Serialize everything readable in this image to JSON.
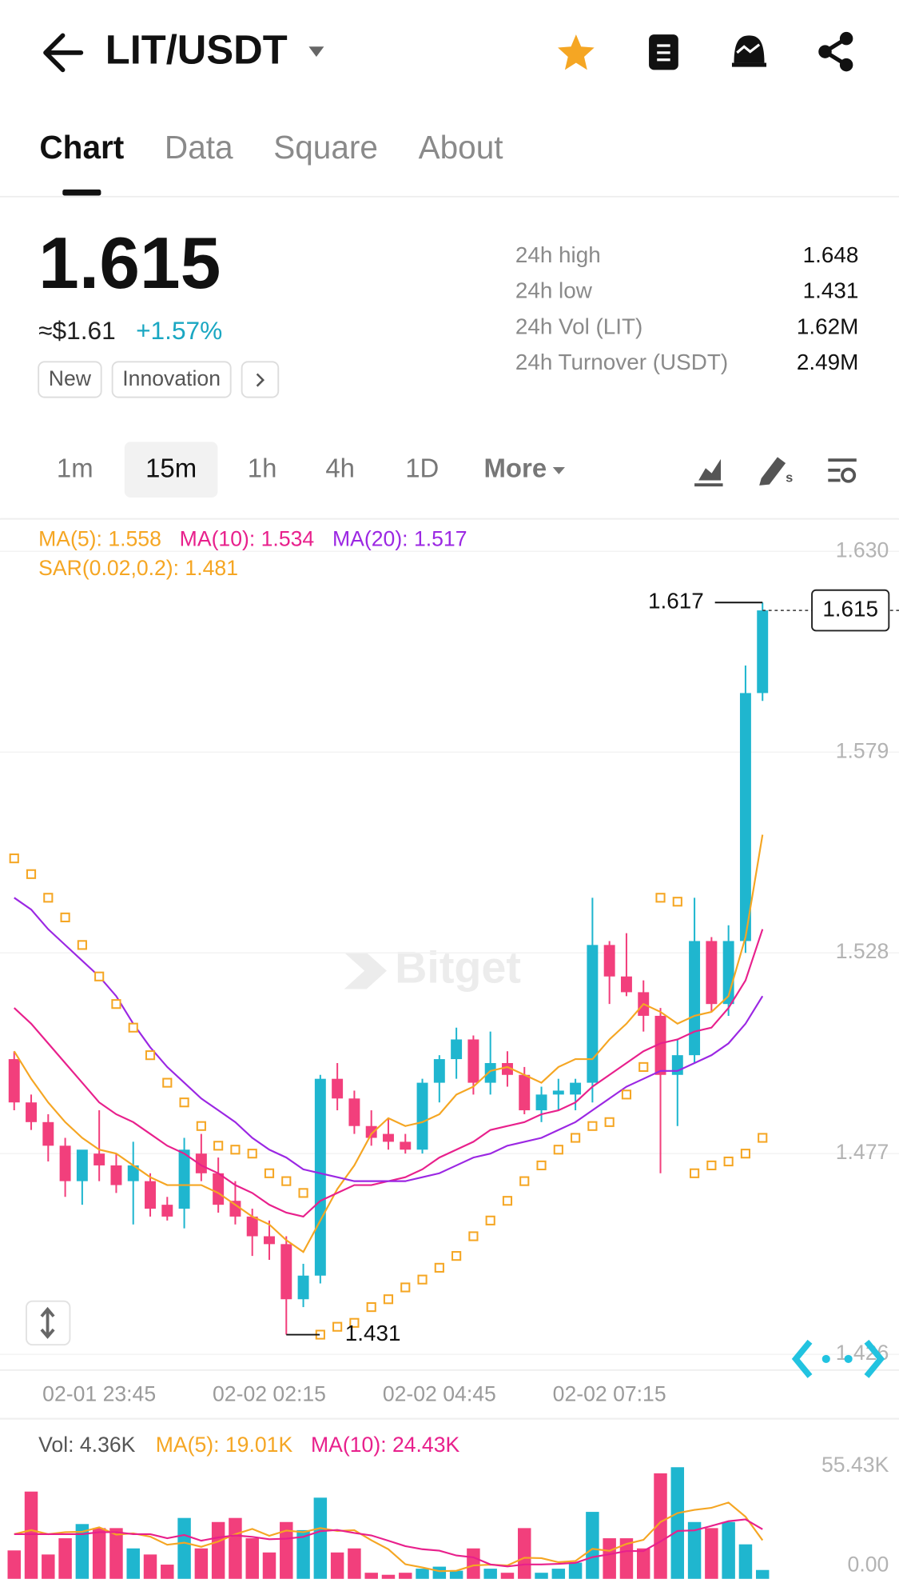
{
  "header": {
    "title": "LIT/USDT"
  },
  "tabs": {
    "items": [
      "Chart",
      "Data",
      "Square",
      "About"
    ],
    "selected": 0
  },
  "ticker": {
    "price": "1.615",
    "usd": "≈$1.61",
    "change": "+1.57%",
    "tags": [
      "New",
      "Innovation"
    ]
  },
  "stats": [
    {
      "label": "24h high",
      "value": "1.648"
    },
    {
      "label": "24h low",
      "value": "1.431"
    },
    {
      "label": "24h Vol (LIT)",
      "value": "1.62M"
    },
    {
      "label": "24h Turnover (USDT)",
      "value": "2.49M"
    }
  ],
  "intervals": {
    "items": [
      "1m",
      "15m",
      "1h",
      "4h",
      "1D",
      "More"
    ],
    "selected": 1
  },
  "watermark": "Bitget",
  "chart_data": [
    {
      "type": "candlestick",
      "categories": [
        null,
        null,
        null,
        null,
        null,
        "02-01 23:45",
        null,
        null,
        null,
        null,
        null,
        null,
        null,
        null,
        null,
        "02-02 02:15",
        null,
        null,
        null,
        null,
        null,
        null,
        null,
        null,
        null,
        "02-02 04:45",
        null,
        null,
        null,
        null,
        null,
        null,
        null,
        null,
        null,
        "02-02 07:15",
        null,
        null,
        null,
        null,
        null,
        null,
        null,
        null,
        null
      ],
      "ohlc": [
        [
          1.501,
          1.503,
          1.488,
          1.49
        ],
        [
          1.49,
          1.492,
          1.483,
          1.485
        ],
        [
          1.485,
          1.487,
          1.475,
          1.479
        ],
        [
          1.479,
          1.481,
          1.466,
          1.47
        ],
        [
          1.47,
          1.476,
          1.464,
          1.478
        ],
        [
          1.477,
          1.488,
          1.47,
          1.474
        ],
        [
          1.474,
          1.477,
          1.467,
          1.469
        ],
        [
          1.47,
          1.48,
          1.459,
          1.474
        ],
        [
          1.47,
          1.472,
          1.461,
          1.463
        ],
        [
          1.464,
          1.466,
          1.46,
          1.461
        ],
        [
          1.463,
          1.481,
          1.458,
          1.478
        ],
        [
          1.477,
          1.482,
          1.47,
          1.472
        ],
        [
          1.472,
          1.476,
          1.462,
          1.464
        ],
        [
          1.465,
          1.47,
          1.459,
          1.461
        ],
        [
          1.461,
          1.463,
          1.451,
          1.456
        ],
        [
          1.456,
          1.46,
          1.45,
          1.454
        ],
        [
          1.454,
          1.456,
          1.431,
          1.44
        ],
        [
          1.44,
          1.449,
          1.438,
          1.446
        ],
        [
          1.446,
          1.497,
          1.444,
          1.496
        ],
        [
          1.496,
          1.5,
          1.488,
          1.491
        ],
        [
          1.491,
          1.493,
          1.482,
          1.484
        ],
        [
          1.484,
          1.488,
          1.479,
          1.481
        ],
        [
          1.482,
          1.486,
          1.478,
          1.48
        ],
        [
          1.48,
          1.482,
          1.477,
          1.478
        ],
        [
          1.478,
          1.496,
          1.477,
          1.495
        ],
        [
          1.495,
          1.502,
          1.49,
          1.501
        ],
        [
          1.501,
          1.509,
          1.496,
          1.506
        ],
        [
          1.506,
          1.507,
          1.492,
          1.495
        ],
        [
          1.495,
          1.508,
          1.492,
          1.5
        ],
        [
          1.5,
          1.503,
          1.494,
          1.497
        ],
        [
          1.497,
          1.499,
          1.487,
          1.488
        ],
        [
          1.488,
          1.494,
          1.485,
          1.492
        ],
        [
          1.492,
          1.496,
          1.488,
          1.493
        ],
        [
          1.492,
          1.496,
          1.488,
          1.495
        ],
        [
          1.495,
          1.542,
          1.49,
          1.53
        ],
        [
          1.53,
          1.531,
          1.515,
          1.522
        ],
        [
          1.522,
          1.533,
          1.517,
          1.518
        ],
        [
          1.518,
          1.521,
          1.508,
          1.512
        ],
        [
          1.512,
          1.514,
          1.472,
          1.497
        ],
        [
          1.497,
          1.506,
          1.484,
          1.502
        ],
        [
          1.502,
          1.542,
          1.5,
          1.531
        ],
        [
          1.531,
          1.532,
          1.513,
          1.515
        ],
        [
          1.515,
          1.535,
          1.512,
          1.531
        ],
        [
          1.531,
          1.601,
          1.528,
          1.594
        ],
        [
          1.594,
          1.617,
          1.592,
          1.615
        ]
      ],
      "up_color": "#1fb6cf",
      "down_color": "#f23f7c",
      "lines": [
        {
          "name": "MA(5): 1.558",
          "color": "#f5a623",
          "values": [
            1.503,
            1.496,
            1.49,
            1.485,
            1.481,
            1.478,
            1.477,
            1.474,
            1.471,
            1.469,
            1.469,
            1.469,
            1.467,
            1.464,
            1.461,
            1.459,
            1.455,
            1.452,
            1.46,
            1.468,
            1.474,
            1.482,
            1.486,
            1.484,
            1.485,
            1.487,
            1.492,
            1.494,
            1.498,
            1.499,
            1.497,
            1.495,
            1.499,
            1.501,
            1.501,
            1.506,
            1.51,
            1.515,
            1.513,
            1.51,
            1.512,
            1.513,
            1.517,
            1.532,
            1.558
          ]
        },
        {
          "name": "MA(10): 1.534",
          "color": "#e8208c",
          "values": [
            1.514,
            1.51,
            1.505,
            1.5,
            1.495,
            1.49,
            1.487,
            1.485,
            1.482,
            1.479,
            1.477,
            1.474,
            1.472,
            1.469,
            1.467,
            1.464,
            1.462,
            1.461,
            1.465,
            1.467,
            1.469,
            1.469,
            1.47,
            1.471,
            1.473,
            1.476,
            1.478,
            1.48,
            1.483,
            1.484,
            1.485,
            1.487,
            1.488,
            1.49,
            1.494,
            1.497,
            1.5,
            1.503,
            1.505,
            1.506,
            1.508,
            1.509,
            1.514,
            1.521,
            1.534
          ]
        },
        {
          "name": "MA(20): 1.517",
          "color": "#9b27e3",
          "values": [
            1.542,
            1.539,
            1.534,
            1.53,
            1.526,
            1.522,
            1.517,
            1.51,
            1.504,
            1.499,
            1.495,
            1.491,
            1.488,
            1.485,
            1.481,
            1.478,
            1.476,
            1.473,
            1.472,
            1.471,
            1.47,
            1.47,
            1.47,
            1.47,
            1.471,
            1.472,
            1.474,
            1.476,
            1.477,
            1.479,
            1.48,
            1.481,
            1.483,
            1.485,
            1.488,
            1.491,
            1.494,
            1.496,
            1.498,
            1.498,
            1.5,
            1.502,
            1.505,
            1.51,
            1.517
          ]
        }
      ],
      "sar": {
        "name": "SAR(0.02,0.2): 1.481",
        "color": "#f5a623",
        "values": [
          1.552,
          1.548,
          1.542,
          1.537,
          1.53,
          1.522,
          1.515,
          1.509,
          1.502,
          1.495,
          1.49,
          1.484,
          1.479,
          1.478,
          1.477,
          1.472,
          1.47,
          1.467,
          1.431,
          1.433,
          1.434,
          1.438,
          1.44,
          1.443,
          1.445,
          1.448,
          1.451,
          1.456,
          1.46,
          1.465,
          1.47,
          1.474,
          1.478,
          1.481,
          1.484,
          1.485,
          1.492,
          1.499,
          1.542,
          1.541,
          1.472,
          1.474,
          1.475,
          1.477,
          1.481
        ]
      },
      "ylim": [
        1.422,
        1.638
      ],
      "yticks": [
        {
          "value": 1.63,
          "label": "1.630"
        },
        1.579,
        1.528,
        1.477,
        1.426
      ],
      "annotations": [
        {
          "value": 1.617,
          "label": "1.617"
        },
        {
          "value": 1.431,
          "label": "1.431"
        }
      ],
      "last_price": {
        "value": 1.615,
        "label": "1.615"
      },
      "grid": true
    },
    {
      "type": "bar",
      "series": [
        {
          "name": "Vol: 4.36K",
          "values": [
            14000,
            43000,
            12000,
            20000,
            27000,
            25000,
            25000,
            15000,
            12000,
            7000,
            30000,
            15000,
            28000,
            30000,
            20000,
            13000,
            28000,
            24000,
            40000,
            13000,
            15000,
            3000,
            2000,
            3000,
            5000,
            6000,
            4000,
            15000,
            5000,
            3000,
            25000,
            3000,
            5000,
            8000,
            33000,
            20000,
            20000,
            15000,
            52000,
            55000,
            28000,
            25000,
            28000,
            17000,
            4360
          ]
        }
      ],
      "lines": [
        {
          "name": "MA(5): 19.01K",
          "color": "#f5a623",
          "values": [
            22000,
            24000,
            22000,
            23000,
            23200,
            25400,
            21800,
            22400,
            20800,
            16800,
            17800,
            15800,
            18400,
            22000,
            24600,
            21200,
            23800,
            23000,
            25000,
            23600,
            24000,
            19000,
            14600,
            7200,
            5600,
            3800,
            4000,
            6600,
            7000,
            6600,
            10400,
            10200,
            8200,
            8800,
            14800,
            13800,
            17200,
            19200,
            28000,
            32400,
            34000,
            35000,
            37600,
            30600,
            19010
          ]
        },
        {
          "name": "MA(10): 24.43K",
          "color": "#e8208c",
          "values": [
            22000,
            22000,
            22000,
            22000,
            22000,
            23000,
            23000,
            22000,
            22000,
            20000,
            21600,
            18800,
            20400,
            21400,
            20700,
            19500,
            19800,
            20700,
            23500,
            24100,
            22600,
            21400,
            18800,
            16100,
            14600,
            13900,
            11500,
            10600,
            7100,
            6100,
            7100,
            7100,
            7400,
            7900,
            10700,
            12100,
            13700,
            13700,
            18400,
            23600,
            23900,
            26100,
            28400,
            29300,
            24430
          ]
        }
      ],
      "ylim": [
        0,
        76400
      ],
      "yticks": [
        {
          "value": 55430,
          "label": "55.43K"
        },
        {
          "value": 0,
          "label": "0.00"
        }
      ],
      "grid": false
    }
  ]
}
